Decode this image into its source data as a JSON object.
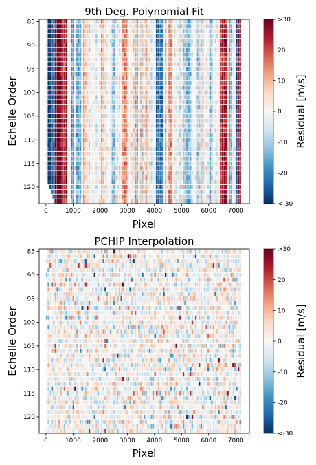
{
  "chart_data": [
    {
      "type": "heatmap",
      "title": "9th Deg. Polynomial Fit",
      "xlabel": "Pixel",
      "ylabel": "Echelle Order",
      "xlim": [
        -250,
        7500
      ],
      "ylim": [
        123.5,
        84.5
      ],
      "x_ticks": [
        0,
        1000,
        2000,
        3000,
        4000,
        5000,
        6000,
        7000
      ],
      "y_ticks": [
        85,
        90,
        95,
        100,
        105,
        110,
        115,
        120
      ],
      "orders": [
        85,
        123
      ],
      "pixel_range": [
        0,
        7200
      ],
      "colorbar": {
        "label": "Residual [m/s]",
        "ticks": [
          -30,
          -20,
          -10,
          0,
          10,
          20,
          30
        ],
        "tick_labels": [
          "<-30",
          "-20",
          "-10",
          "0",
          "10",
          "20",
          ">30"
        ],
        "colormap": "RdBu_r",
        "vmin": -30,
        "vmax": 30
      },
      "strong_columns": [
        {
          "pixel": 150,
          "residual": -30
        },
        {
          "pixel": 280,
          "residual": -26
        },
        {
          "pixel": 420,
          "residual": 28
        },
        {
          "pixel": 520,
          "residual": 30
        },
        {
          "pixel": 700,
          "residual": 26
        },
        {
          "pixel": 1000,
          "residual": -18
        },
        {
          "pixel": 1200,
          "residual": -14
        },
        {
          "pixel": 1450,
          "residual": 10
        },
        {
          "pixel": 2100,
          "residual": 12
        },
        {
          "pixel": 2500,
          "residual": -12
        },
        {
          "pixel": 2900,
          "residual": 14
        },
        {
          "pixel": 3350,
          "residual": -14
        },
        {
          "pixel": 3750,
          "residual": 12
        },
        {
          "pixel": 4150,
          "residual": -28
        },
        {
          "pixel": 4230,
          "residual": -22
        },
        {
          "pixel": 4600,
          "residual": 10
        },
        {
          "pixel": 5200,
          "residual": -10
        },
        {
          "pixel": 5700,
          "residual": 10
        },
        {
          "pixel": 6100,
          "residual": -12
        },
        {
          "pixel": 6480,
          "residual": 22
        },
        {
          "pixel": 6580,
          "residual": 26
        },
        {
          "pixel": 6800,
          "residual": -16
        },
        {
          "pixel": 7050,
          "residual": -28
        },
        {
          "pixel": 7150,
          "residual": 28
        }
      ]
    },
    {
      "type": "heatmap",
      "title": "PCHIP Interpolation",
      "xlabel": "Pixel",
      "ylabel": "Echelle Order",
      "xlim": [
        -250,
        7500
      ],
      "ylim": [
        123.5,
        84.5
      ],
      "x_ticks": [
        0,
        1000,
        2000,
        3000,
        4000,
        5000,
        6000,
        7000
      ],
      "y_ticks": [
        85,
        90,
        95,
        100,
        105,
        110,
        115,
        120
      ],
      "orders": [
        85,
        123
      ],
      "pixel_range": [
        0,
        7200
      ],
      "colorbar": {
        "label": "Residual [m/s]",
        "ticks": [
          -30,
          -20,
          -10,
          0,
          10,
          20,
          30
        ],
        "tick_labels": [
          "<-30",
          "-20",
          "-10",
          "0",
          "10",
          "20",
          ">30"
        ],
        "colormap": "RdBu_r",
        "vmin": -30,
        "vmax": 30
      }
    }
  ]
}
